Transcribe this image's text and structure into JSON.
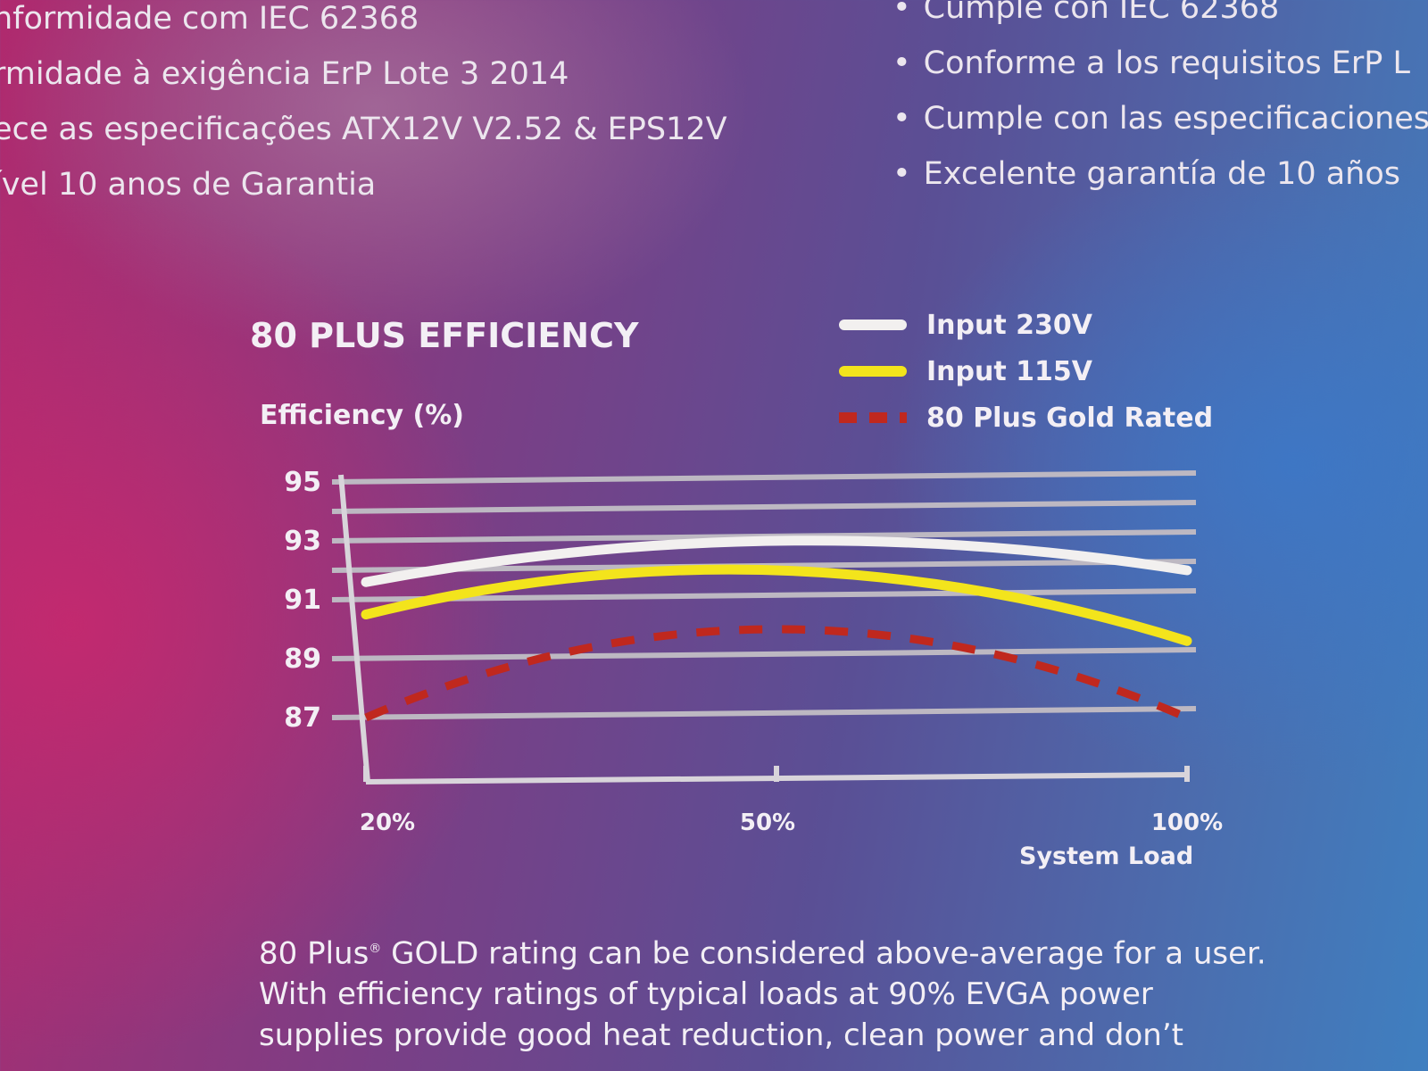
{
  "features_pt": [
    "nformidade com IEC 62368",
    "rmidade à exigência ErP Lote 3 2014",
    "ece as especificações  ATX12V V2.52 & EPS12V",
    "ível 10 anos de Garantia"
  ],
  "features_es": [
    "Cumple con IEC 62368",
    "Conforme a los requisitos ErP L",
    "Cumple con las especificaciones",
    "Excelente garantía de 10 años"
  ],
  "chart_data": {
    "type": "line",
    "title": "80 PLUS EFFICIENCY",
    "ylabel": "Efficiency (%)",
    "xlabel": "System Load",
    "x_ticks": [
      "20%",
      "50%",
      "100%"
    ],
    "y_ticks": [
      "95",
      "93",
      "91",
      "89",
      "87"
    ],
    "ylim": [
      85,
      95
    ],
    "grid": true,
    "legend_position": "top-right",
    "x": [
      20,
      50,
      100
    ],
    "series": [
      {
        "name": "Input 230V",
        "values": [
          91.6,
          93.0,
          92.0
        ],
        "color": "#f2f0ef",
        "style": "solid"
      },
      {
        "name": "Input 115V",
        "values": [
          90.5,
          92.0,
          89.6
        ],
        "color": "#f3e41c",
        "style": "solid"
      },
      {
        "name": "80 Plus Gold Rated",
        "values": [
          87.0,
          90.0,
          87.0
        ],
        "color": "#c0281e",
        "style": "dashed"
      }
    ]
  },
  "description": {
    "registered": "®",
    "line1_a": "80 Plus",
    "line1_b": " GOLD rating can be considered above-average for a user.",
    "line2": "With efficiency ratings of typical loads at 90% EVGA power",
    "line3": "supplies provide good heat reduction, clean power and don’t"
  }
}
